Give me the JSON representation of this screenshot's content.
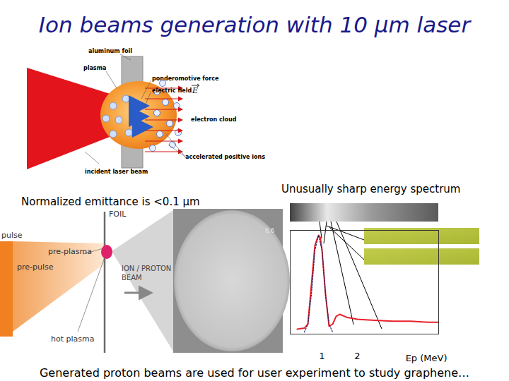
{
  "title": "Ion beams generation with 10 μm laser",
  "diagram_top": {
    "foil": "aluminum foil",
    "plasma": "plasma",
    "ponderomotive": "ponderomotive force",
    "electric_field": "electric field",
    "field_symbol": "E",
    "electron_cloud": "electron cloud",
    "incident_beam": "incident laser beam",
    "accelerated_ions": "accelerated positive ions"
  },
  "diagram_bottom": {
    "pulse": "pulse",
    "foil": "FOIL",
    "pre_plasma": "pre-plasma",
    "pre_pulse": "pre-pulse",
    "hot_plasma": "hot plasma",
    "beam_lines": [
      "ION / PROTON",
      "BEAM"
    ],
    "image_mark": "6.6"
  },
  "captions": {
    "emittance": "Normalized emittance is <0.1 μm",
    "spectrum": "Unusually sharp energy spectrum",
    "footer": "Generated proton beams are used for user experiment to study graphene…"
  },
  "chart_data": {
    "type": "line",
    "xlabel": "Ep (MeV)",
    "xlim": [
      0.1,
      4.3
    ],
    "xticks": [
      1,
      2
    ],
    "ylim": [
      0,
      1.05
    ],
    "tick_labels": "x",
    "series": [
      {
        "color": "#e8202a",
        "line_style": "solid",
        "x": [
          0.3,
          0.5,
          0.6,
          0.7,
          0.8,
          0.9,
          0.95,
          1.0,
          1.1,
          1.2,
          1.3,
          1.4,
          1.5,
          1.7,
          2.0,
          2.5,
          3.0,
          3.5,
          4.0,
          4.3
        ],
        "values": [
          0.05,
          0.06,
          0.1,
          0.5,
          0.9,
          1.0,
          0.98,
          0.85,
          0.4,
          0.08,
          0.1,
          0.18,
          0.2,
          0.17,
          0.15,
          0.14,
          0.13,
          0.13,
          0.12,
          0.12
        ]
      },
      {
        "color": "#222266",
        "line_style": "dotted",
        "x": [
          0.5,
          0.6,
          0.7,
          0.8,
          0.9,
          1.0,
          1.1,
          1.2,
          1.3
        ],
        "values": [
          0.02,
          0.1,
          0.4,
          0.85,
          1.0,
          0.85,
          0.4,
          0.1,
          0.02
        ]
      }
    ]
  }
}
